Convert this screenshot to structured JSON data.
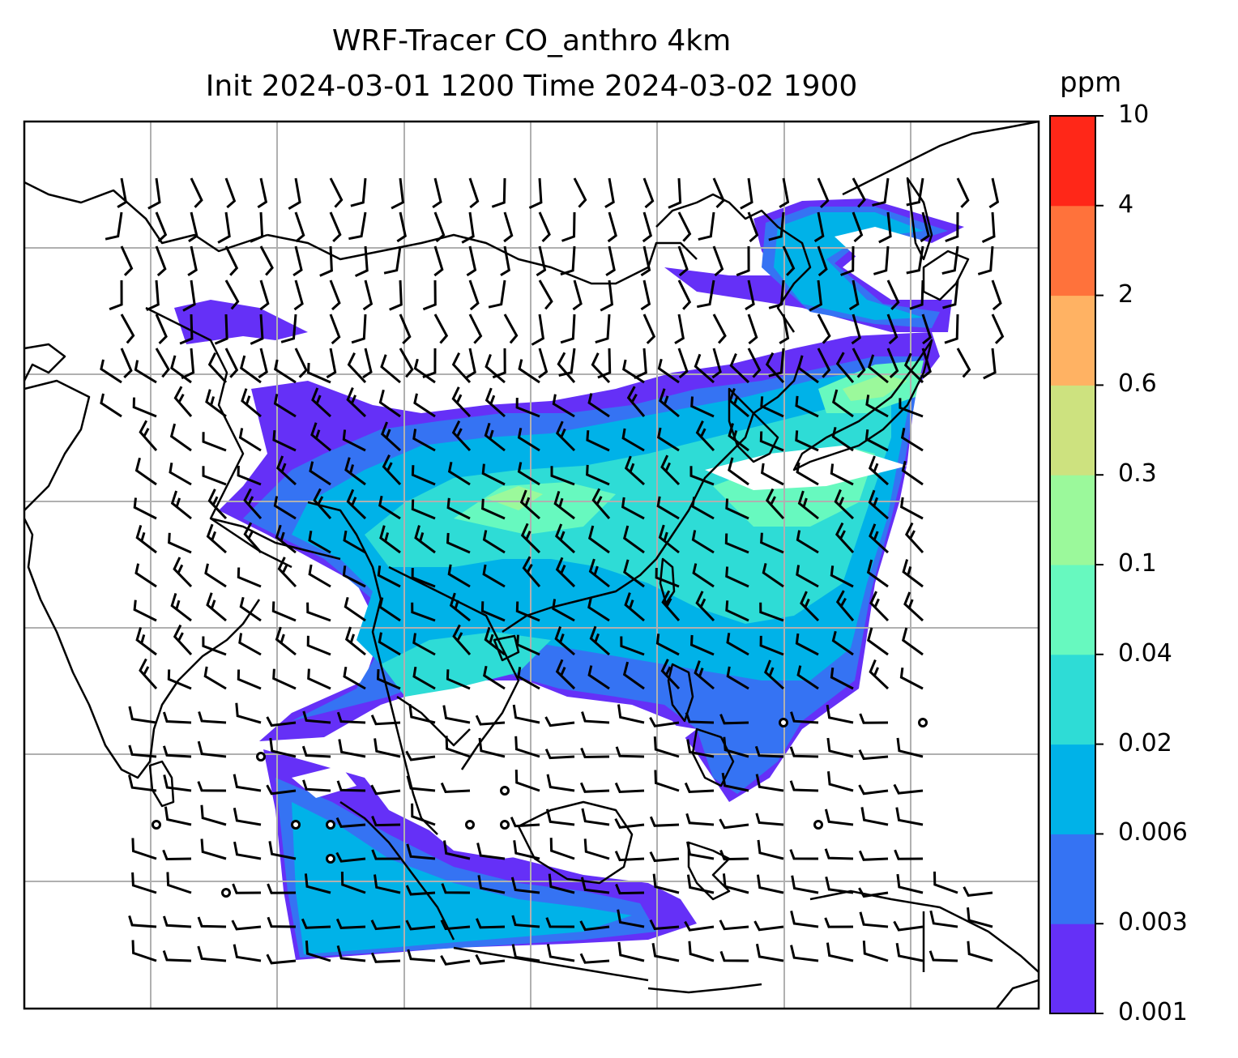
{
  "title": {
    "line1": "WRF-Tracer CO_anthro 4km",
    "line2": "Init 2024-03-01 1200 Time 2024-03-02 1900"
  },
  "colorbar": {
    "unit": "ppm",
    "levels": [
      "0.001",
      "0.003",
      "0.006",
      "0.02",
      "0.04",
      "0.1",
      "0.3",
      "0.6",
      "2",
      "4",
      "10"
    ],
    "colors": [
      "#6530f7",
      "#3573f3",
      "#00b2e8",
      "#2edcd6",
      "#67f9bf",
      "#9bf99b",
      "#cde27f",
      "#ffb263",
      "#ff723b",
      "#ff2718"
    ]
  },
  "map": {
    "frame_color": "#000000",
    "grid_color": "#b0b0b0",
    "coastline_color": "#000000",
    "barb_color": "#000000"
  }
}
